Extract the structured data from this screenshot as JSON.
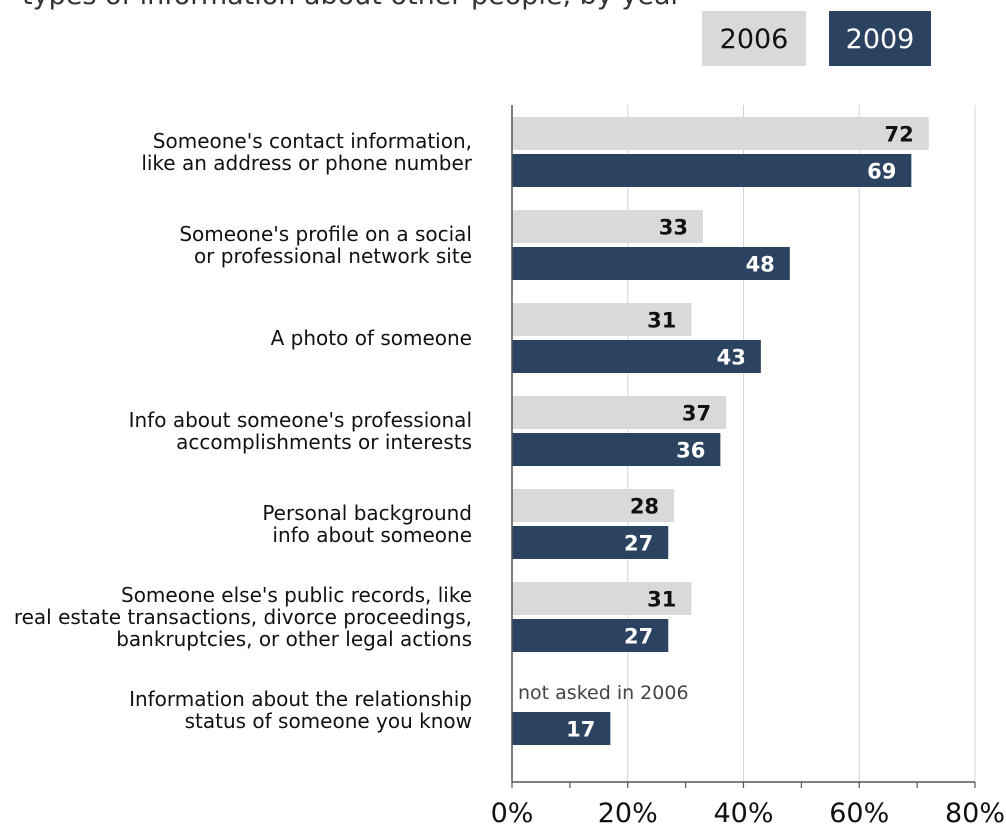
{
  "title": "types of information about other people, by year",
  "chart_data": {
    "type": "bar",
    "orientation": "horizontal",
    "title": "types of information about other people, by year",
    "categories": [
      [
        "Someone's contact information,",
        "like an address or phone number"
      ],
      [
        "Someone's profile on a social",
        "or professional network site"
      ],
      [
        "A photo of someone"
      ],
      [
        "Info about someone's professional",
        "accomplishments or interests"
      ],
      [
        "Personal background",
        "info about someone"
      ],
      [
        "Someone else's public records, like",
        "real estate transactions, divorce proceedings,",
        "bankruptcies, or other legal actions"
      ],
      [
        "Information about the relationship",
        "status of someone you know"
      ]
    ],
    "series": [
      {
        "name": "2006",
        "color": "#d9d9d9",
        "label_color": "#111111",
        "values": [
          72,
          33,
          31,
          37,
          28,
          31,
          null
        ]
      },
      {
        "name": "2009",
        "color": "#2b4360",
        "label_color": "#ffffff",
        "values": [
          69,
          48,
          43,
          36,
          27,
          27,
          17
        ]
      }
    ],
    "notes": [
      null,
      null,
      null,
      null,
      null,
      null,
      "not asked in 2006"
    ],
    "xlim": [
      0,
      80
    ],
    "xticks": [
      0,
      20,
      40,
      60,
      80
    ],
    "xtick_labels": [
      "0%",
      "20%",
      "40%",
      "60%",
      "80%"
    ],
    "grid": true,
    "legend_position": "top-right"
  }
}
